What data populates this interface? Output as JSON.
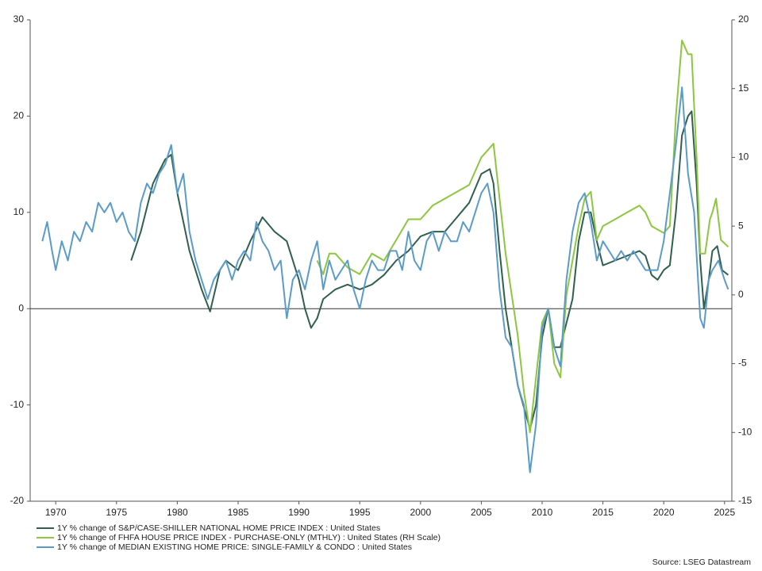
{
  "chart_data": {
    "type": "line",
    "xlim": [
      1967.9,
      2025.6
    ],
    "xticks": [
      1970,
      1975,
      1980,
      1985,
      1990,
      1995,
      2000,
      2005,
      2010,
      2015,
      2020,
      2025
    ],
    "ylim": [
      -20,
      30
    ],
    "yticks": [
      -20,
      -10,
      0,
      10,
      20,
      30
    ],
    "y2lim": [
      -15,
      20
    ],
    "y2ticks": [
      -15,
      -10,
      -5,
      0,
      5,
      10,
      15,
      20
    ],
    "source": "Source: LSEG Datastream",
    "series": [
      {
        "name": "1Y % change of S&P/CASE-SHILLER NATIONAL HOME PRICE INDEX : United States",
        "color": "#2f5f4f",
        "x": [
          1976.2,
          1977,
          1978,
          1979,
          1979.5,
          1980,
          1981,
          1982,
          1982.7,
          1983.5,
          1984,
          1985,
          1986,
          1987,
          1988,
          1988.5,
          1989,
          1990,
          1990.5,
          1991,
          1991.5,
          1992,
          1993,
          1994,
          1995,
          1996,
          1997,
          1998,
          1999,
          2000,
          2001,
          2002,
          2003,
          2004,
          2005,
          2005.7,
          2006,
          2006.5,
          2007,
          2008,
          2009,
          2009.5,
          2010,
          2010.5,
          2011,
          2011.5,
          2012,
          2012.5,
          2013,
          2013.5,
          2014,
          2014.5,
          2015,
          2016,
          2017,
          2018,
          2018.5,
          2019,
          2019.5,
          2020,
          2020.5,
          2021,
          2021.5,
          2022,
          2022.3,
          2022.7,
          2023,
          2023.3,
          2023.7,
          2024,
          2024.4,
          2024.8,
          2025.3
        ],
        "values": [
          5,
          8,
          13,
          15.5,
          16,
          12,
          6,
          2,
          -0.3,
          4,
          5,
          4,
          7,
          9.5,
          8,
          7.5,
          7,
          3,
          0,
          -2,
          -1,
          1,
          2,
          2.5,
          2,
          2.5,
          3.5,
          5,
          6,
          7.5,
          8,
          8,
          9.5,
          11,
          14,
          14.5,
          13,
          6,
          0,
          -8,
          -12.5,
          -10,
          -3,
          0,
          -4,
          -4,
          -1.5,
          1,
          7,
          10,
          10,
          7,
          4.5,
          5,
          5.5,
          6,
          5.5,
          3.5,
          3,
          4,
          4.5,
          10,
          18,
          20,
          20.5,
          13,
          5,
          0,
          3,
          6,
          6.5,
          4,
          3.5
        ]
      },
      {
        "name": "1Y % change of FHFA HOUSE PRICE INDEX - PURCHASE-ONLY (MTHLY) : United States (RH Scale)",
        "color": "#8dc63f",
        "axis": "y2",
        "x": [
          1991.5,
          1992,
          1992.5,
          1993,
          1994,
          1995,
          1996,
          1997,
          1998,
          1999,
          2000,
          2000.5,
          2001,
          2002,
          2003,
          2004,
          2005,
          2005.5,
          2006,
          2006.5,
          2007,
          2008,
          2008.5,
          2009,
          2009.5,
          2010,
          2010.5,
          2011,
          2011.5,
          2012,
          2013,
          2013.5,
          2014,
          2014.5,
          2015,
          2016,
          2017,
          2018,
          2018.5,
          2019,
          2020,
          2020.5,
          2021,
          2021.5,
          2022,
          2022.3,
          2022.7,
          2023,
          2023.4,
          2023.8,
          2024,
          2024.3,
          2024.7,
          2025.3
        ],
        "values": [
          2.5,
          1.5,
          3,
          3,
          2,
          1.5,
          3,
          2.5,
          4,
          5.5,
          5.5,
          6,
          6.5,
          7,
          7.5,
          8,
          10,
          10.5,
          11,
          7,
          3,
          -3,
          -7,
          -10,
          -6,
          -2,
          -1,
          -5,
          -6,
          0,
          5,
          7,
          7.5,
          4,
          5,
          5.5,
          6,
          6.5,
          6,
          5,
          4.5,
          5,
          13,
          18.5,
          17.5,
          17.5,
          10,
          3,
          3,
          5.5,
          6,
          7,
          4,
          3.5
        ]
      },
      {
        "name": "1Y % change of MEDIAN EXISTING HOME PRICE: SINGLE-FAMILY & CONDO : United States",
        "color": "#5b9bc8",
        "x": [
          1968.9,
          1969.3,
          1969.7,
          1970,
          1970.5,
          1971,
          1971.5,
          1972,
          1972.5,
          1973,
          1973.5,
          1974,
          1974.5,
          1975,
          1975.5,
          1976,
          1976.5,
          1977,
          1977.5,
          1978,
          1978.5,
          1979,
          1979.5,
          1980,
          1980.5,
          1981,
          1981.5,
          1982,
          1982.5,
          1983,
          1983.5,
          1984,
          1984.5,
          1985,
          1985.5,
          1986,
          1986.5,
          1987,
          1987.5,
          1988,
          1988.5,
          1989,
          1989.5,
          1990,
          1990.5,
          1991,
          1991.5,
          1992,
          1992.5,
          1993,
          1993.5,
          1994,
          1994.5,
          1995,
          1995.5,
          1996,
          1996.5,
          1997,
          1997.5,
          1998,
          1998.5,
          1999,
          1999.5,
          2000,
          2000.5,
          2001,
          2001.5,
          2002,
          2002.5,
          2003,
          2003.5,
          2004,
          2004.5,
          2005,
          2005.5,
          2006,
          2006.5,
          2007,
          2007.5,
          2008,
          2008.5,
          2009,
          2009.5,
          2010,
          2010.5,
          2011,
          2011.5,
          2012,
          2012.5,
          2013,
          2013.5,
          2014,
          2014.5,
          2015,
          2015.5,
          2016,
          2016.5,
          2017,
          2017.5,
          2018,
          2018.5,
          2019,
          2019.5,
          2020,
          2020.5,
          2021,
          2021.5,
          2022,
          2022.5,
          2023,
          2023.3,
          2023.7,
          2024,
          2024.5,
          2025,
          2025.3
        ],
        "values": [
          7,
          9,
          6,
          4,
          7,
          5,
          8,
          7,
          9,
          8,
          11,
          10,
          11,
          9,
          10,
          8,
          7,
          11,
          13,
          12,
          14,
          15,
          17,
          12,
          14,
          8,
          5,
          3,
          1,
          3,
          4,
          5,
          3,
          5,
          6,
          5,
          9,
          7,
          6,
          4,
          5,
          -1,
          3,
          4,
          2,
          5,
          7,
          2,
          5,
          3,
          4,
          5,
          2,
          0,
          3,
          5,
          4,
          4,
          6,
          6,
          4,
          8,
          5,
          4,
          7,
          8,
          6,
          8,
          7,
          7,
          9,
          8,
          10,
          12,
          13,
          10,
          2,
          -3,
          -4,
          -8,
          -10,
          -17,
          -12,
          -2,
          0,
          -4,
          -6,
          3,
          8,
          11,
          12,
          9,
          5,
          7,
          6,
          5,
          6,
          5,
          6,
          5,
          4,
          4,
          4,
          7,
          12,
          17,
          23,
          14,
          10,
          -1,
          -2,
          3,
          4,
          5,
          3,
          2
        ]
      }
    ]
  }
}
